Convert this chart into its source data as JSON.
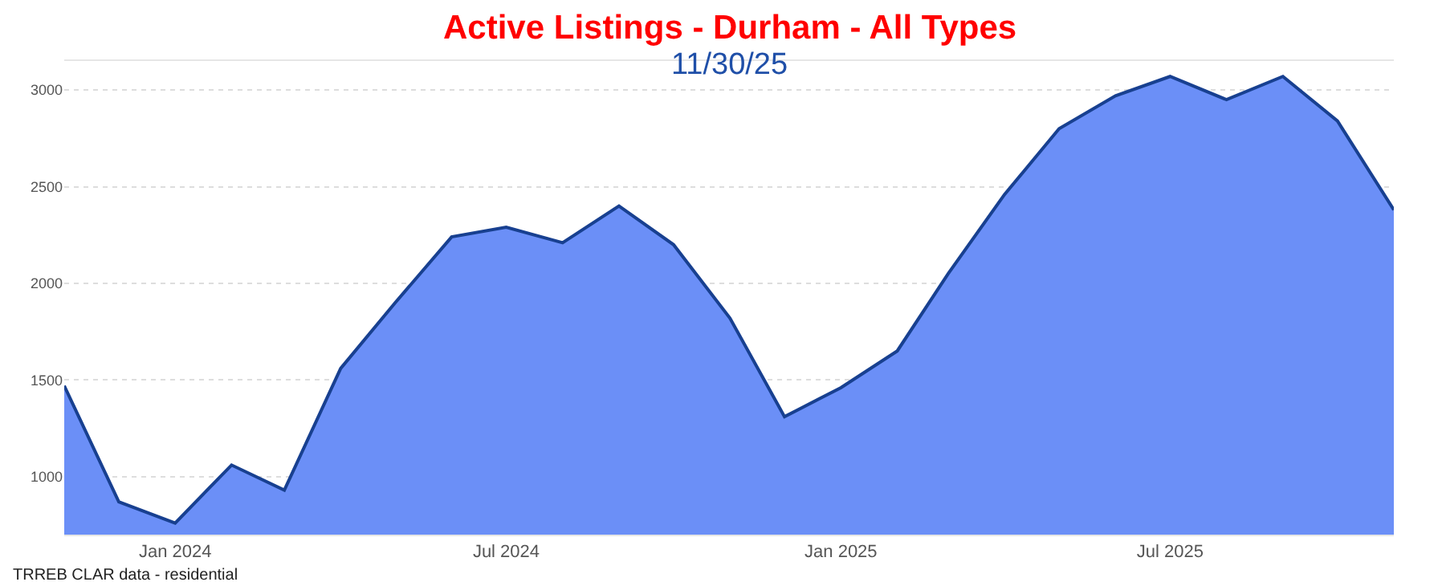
{
  "chart_data": {
    "type": "area",
    "title": "Active Listings - Durham - All Types",
    "subtitle": "11/30/25",
    "x": [
      "2023-11",
      "2023-12",
      "2024-01",
      "2024-02",
      "2024-03",
      "2024-04",
      "2024-05",
      "2024-06",
      "2024-07",
      "2024-08",
      "2024-09",
      "2024-10",
      "2024-11",
      "2024-12",
      "2025-01",
      "2025-02",
      "2025-03",
      "2025-04",
      "2025-05",
      "2025-06",
      "2025-07",
      "2025-08",
      "2025-09",
      "2025-10",
      "2025-11"
    ],
    "series": [
      {
        "color": "#6b8ff7",
        "values": [
          1470,
          870,
          760,
          1060,
          930,
          1560,
          1900,
          2240,
          2290,
          2210,
          2400,
          2200,
          1820,
          1310,
          1460,
          1650,
          2050,
          2460,
          2800,
          2970,
          3070,
          2950,
          3070,
          2840,
          2380
        ]
      }
    ],
    "xlim": [
      "2023-11",
      "2025-11"
    ],
    "xticks": [
      {
        "value": "2024-01",
        "label": "Jan 2024"
      },
      {
        "value": "2024-07",
        "label": "Jul 2024"
      },
      {
        "value": "2025-01",
        "label": "Jan 2025"
      },
      {
        "value": "2025-07",
        "label": "Jul 2025"
      }
    ],
    "ylim": [
      700,
      3150
    ],
    "yticks": [
      1000,
      1500,
      2000,
      2500,
      3000
    ],
    "grid": "y",
    "marker": "none",
    "line_style": "solid",
    "annotations": [
      "TRREB CLAR data - residential"
    ]
  }
}
